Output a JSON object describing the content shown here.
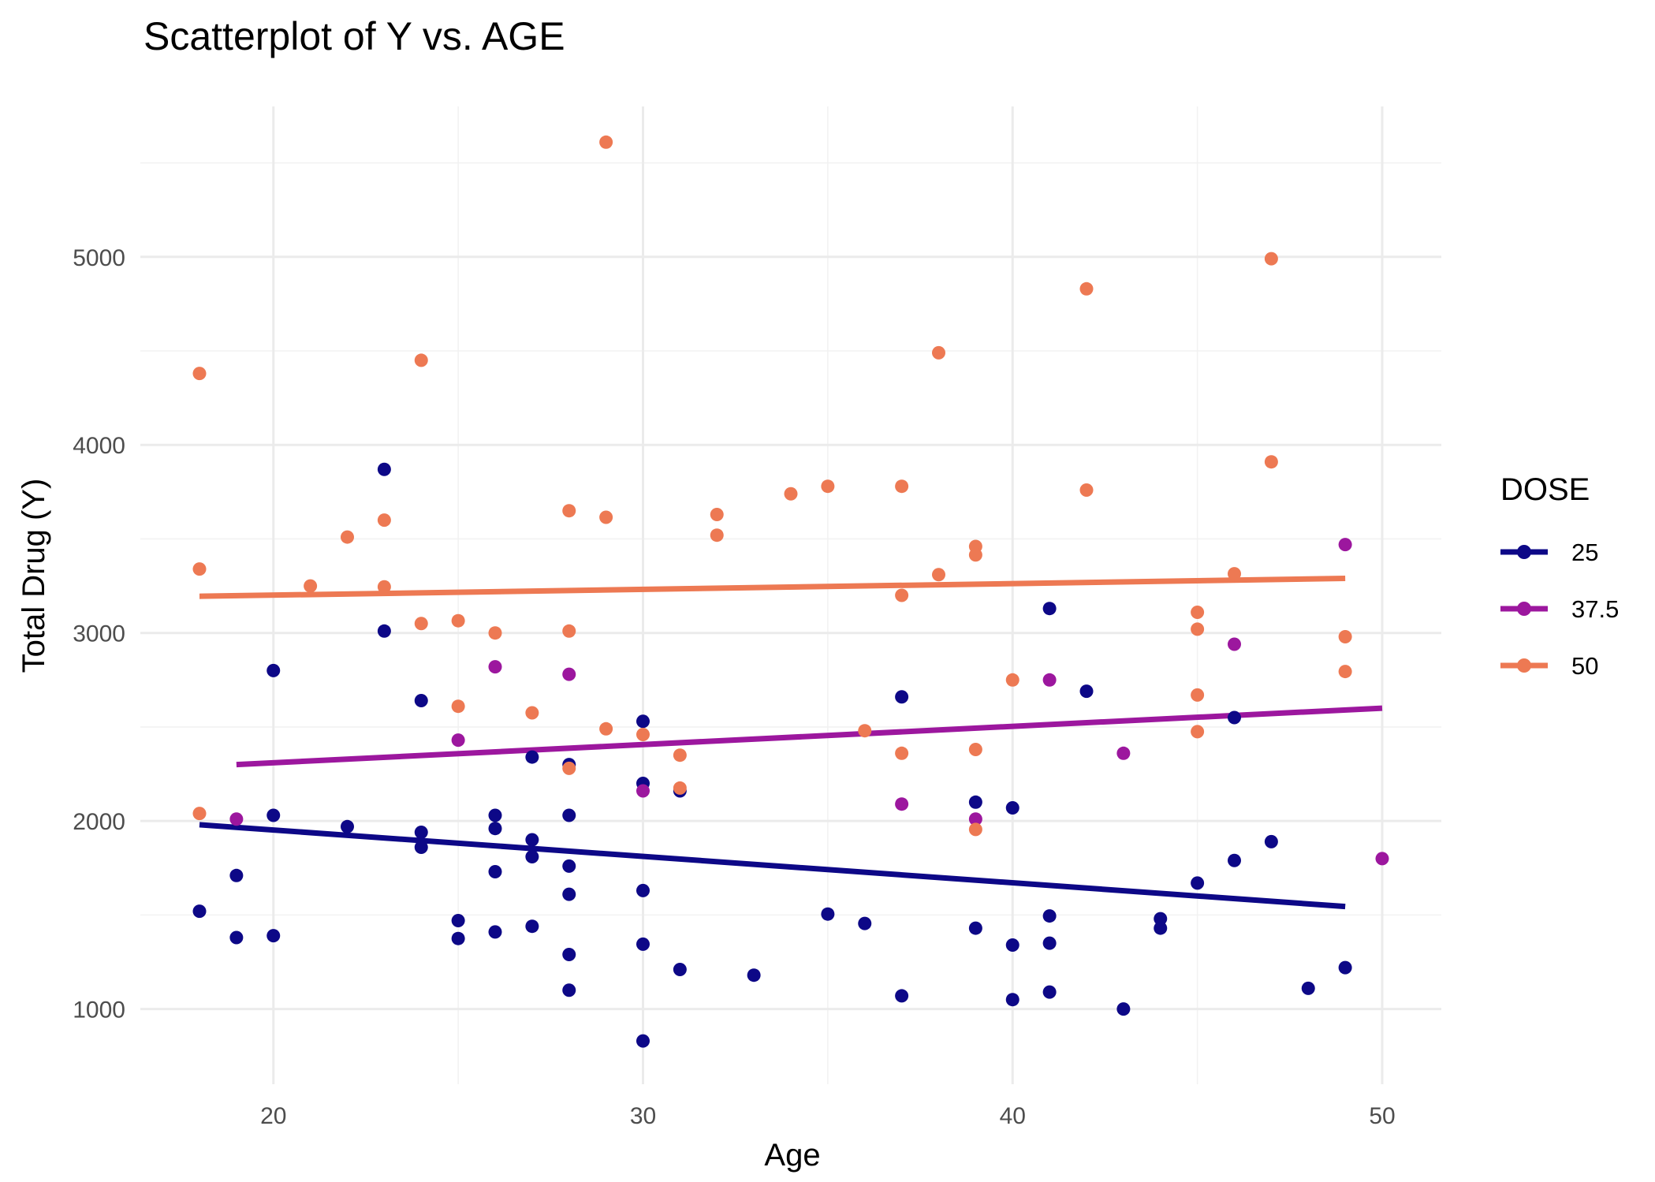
{
  "chart_data": {
    "type": "scatter",
    "title": "Scatterplot of Y vs. AGE",
    "xlabel": "Age",
    "ylabel": "Total Drug (Y)",
    "xlim": [
      16.4,
      51.6
    ],
    "ylim": [
      600,
      5800
    ],
    "x_ticks": [
      20,
      30,
      40,
      50
    ],
    "y_ticks": [
      1000,
      2000,
      3000,
      4000,
      5000
    ],
    "grid": true,
    "legend": {
      "title": "DOSE",
      "position": "right"
    },
    "series": [
      {
        "name": "25",
        "color": "#0d0887",
        "points": [
          [
            18,
            1520
          ],
          [
            19,
            1710
          ],
          [
            19,
            1380
          ],
          [
            20,
            2800
          ],
          [
            20,
            2030
          ],
          [
            20,
            1390
          ],
          [
            22,
            1970
          ],
          [
            23,
            3870
          ],
          [
            23,
            3010
          ],
          [
            24,
            2640
          ],
          [
            24,
            1940
          ],
          [
            24,
            1860
          ],
          [
            25,
            1470
          ],
          [
            25,
            1375
          ],
          [
            26,
            2030
          ],
          [
            26,
            1960
          ],
          [
            26,
            1730
          ],
          [
            26,
            1410
          ],
          [
            27,
            2340
          ],
          [
            27,
            1900
          ],
          [
            27,
            1810
          ],
          [
            27,
            1440
          ],
          [
            28,
            2300
          ],
          [
            28,
            2030
          ],
          [
            28,
            1760
          ],
          [
            28,
            1610
          ],
          [
            28,
            1290
          ],
          [
            28,
            1100
          ],
          [
            30,
            2530
          ],
          [
            30,
            2200
          ],
          [
            30,
            1630
          ],
          [
            30,
            1345
          ],
          [
            30,
            830
          ],
          [
            31,
            2160
          ],
          [
            31,
            1210
          ],
          [
            33,
            1180
          ],
          [
            35,
            1505
          ],
          [
            36,
            1455
          ],
          [
            37,
            2660
          ],
          [
            37,
            1070
          ],
          [
            39,
            2100
          ],
          [
            39,
            1430
          ],
          [
            40,
            2070
          ],
          [
            40,
            1340
          ],
          [
            40,
            1050
          ],
          [
            41,
            3130
          ],
          [
            41,
            1495
          ],
          [
            41,
            1350
          ],
          [
            41,
            1090
          ],
          [
            42,
            2690
          ],
          [
            43,
            1000
          ],
          [
            44,
            1480
          ],
          [
            44,
            1430
          ],
          [
            45,
            1670
          ],
          [
            46,
            2550
          ],
          [
            46,
            1790
          ],
          [
            47,
            1890
          ],
          [
            48,
            1110
          ],
          [
            49,
            1220
          ]
        ],
        "trend": {
          "x": [
            18,
            49
          ],
          "y": [
            1980,
            1545
          ]
        }
      },
      {
        "name": "37.5",
        "color": "#9c179e",
        "points": [
          [
            19,
            2010
          ],
          [
            25,
            2430
          ],
          [
            26,
            2820
          ],
          [
            28,
            2780
          ],
          [
            30,
            2160
          ],
          [
            37,
            2090
          ],
          [
            39,
            2010
          ],
          [
            41,
            2750
          ],
          [
            43,
            2360
          ],
          [
            46,
            2940
          ],
          [
            49,
            3470
          ],
          [
            50,
            1800
          ]
        ],
        "trend": {
          "x": [
            19,
            50
          ],
          "y": [
            2300,
            2600
          ]
        }
      },
      {
        "name": "50",
        "color": "#ed7953",
        "points": [
          [
            18,
            4380
          ],
          [
            18,
            3340
          ],
          [
            18,
            2040
          ],
          [
            21,
            3250
          ],
          [
            22,
            3510
          ],
          [
            23,
            3600
          ],
          [
            23,
            3245
          ],
          [
            24,
            4450
          ],
          [
            24,
            3050
          ],
          [
            25,
            3065
          ],
          [
            25,
            2610
          ],
          [
            26,
            3000
          ],
          [
            27,
            2575
          ],
          [
            28,
            3650
          ],
          [
            28,
            3010
          ],
          [
            28,
            2280
          ],
          [
            29,
            5610
          ],
          [
            29,
            3615
          ],
          [
            29,
            2490
          ],
          [
            30,
            2460
          ],
          [
            31,
            2350
          ],
          [
            31,
            2175
          ],
          [
            32,
            3630
          ],
          [
            32,
            3520
          ],
          [
            34,
            3740
          ],
          [
            35,
            3780
          ],
          [
            36,
            2480
          ],
          [
            37,
            3780
          ],
          [
            37,
            3200
          ],
          [
            37,
            2360
          ],
          [
            38,
            4490
          ],
          [
            38,
            3310
          ],
          [
            39,
            3460
          ],
          [
            39,
            3415
          ],
          [
            39,
            2380
          ],
          [
            39,
            1955
          ],
          [
            40,
            2750
          ],
          [
            42,
            4830
          ],
          [
            42,
            3760
          ],
          [
            45,
            3110
          ],
          [
            45,
            3020
          ],
          [
            45,
            2670
          ],
          [
            45,
            2475
          ],
          [
            46,
            3315
          ],
          [
            47,
            4990
          ],
          [
            47,
            3910
          ],
          [
            49,
            2980
          ],
          [
            49,
            2795
          ]
        ],
        "trend": {
          "x": [
            18,
            49
          ],
          "y": [
            3195,
            3290
          ]
        }
      }
    ]
  }
}
